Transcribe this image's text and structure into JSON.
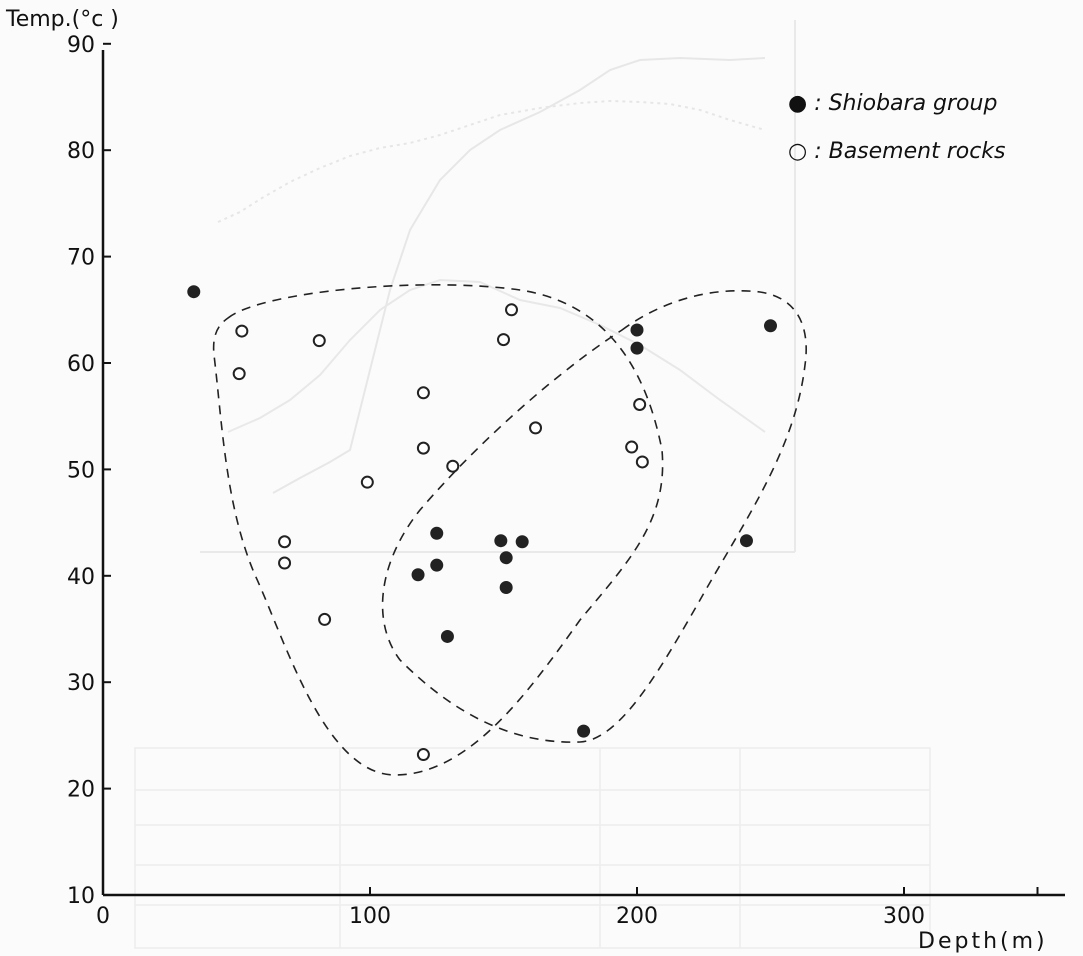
{
  "chart_data": {
    "type": "scatter",
    "ylabel": "Temp.(°c )",
    "xlabel": "Depth(m)",
    "xlim": [
      0,
      360
    ],
    "ylim": [
      10,
      90
    ],
    "x_ticks": [
      {
        "value": 0,
        "label": "0"
      },
      {
        "value": 100,
        "label": "100"
      },
      {
        "value": 200,
        "label": "200"
      },
      {
        "value": 300,
        "label": "300"
      }
    ],
    "y_ticks": [
      {
        "value": 10,
        "label": "10"
      },
      {
        "value": 20,
        "label": "20"
      },
      {
        "value": 30,
        "label": "30"
      },
      {
        "value": 40,
        "label": "40"
      },
      {
        "value": 50,
        "label": "50"
      },
      {
        "value": 60,
        "label": "60"
      },
      {
        "value": 70,
        "label": "70"
      },
      {
        "value": 80,
        "label": "80"
      },
      {
        "value": 90,
        "label": "90"
      }
    ],
    "series": [
      {
        "name": "Shiobara group",
        "legend_label": "● : Shiobara group",
        "marker": "filled-circle",
        "color": "#222222",
        "points": [
          [
            34,
            66.7
          ],
          [
            200,
            63.1
          ],
          [
            200,
            61.4
          ],
          [
            250,
            63.5
          ],
          [
            125,
            44.0
          ],
          [
            125,
            41.0
          ],
          [
            118,
            40.1
          ],
          [
            149,
            43.3
          ],
          [
            151,
            41.7
          ],
          [
            157,
            43.2
          ],
          [
            151,
            38.9
          ],
          [
            129,
            34.3
          ],
          [
            180,
            25.4
          ],
          [
            241,
            43.3
          ]
        ]
      },
      {
        "name": "Basement rocks",
        "legend_label": "○ : Basement rocks",
        "marker": "open-circle",
        "color": "#222222",
        "points": [
          [
            52,
            63.0
          ],
          [
            51,
            59.0
          ],
          [
            81,
            62.1
          ],
          [
            153,
            65.0
          ],
          [
            150,
            62.2
          ],
          [
            120,
            57.2
          ],
          [
            120,
            52.0
          ],
          [
            131,
            50.3
          ],
          [
            99,
            48.8
          ],
          [
            162,
            53.9
          ],
          [
            201,
            56.1
          ],
          [
            198,
            52.1
          ],
          [
            202,
            50.7
          ],
          [
            68,
            43.2
          ],
          [
            68,
            41.2
          ],
          [
            83,
            35.9
          ],
          [
            120,
            23.2
          ]
        ]
      }
    ],
    "grid": false,
    "legend_position": "top-right"
  }
}
